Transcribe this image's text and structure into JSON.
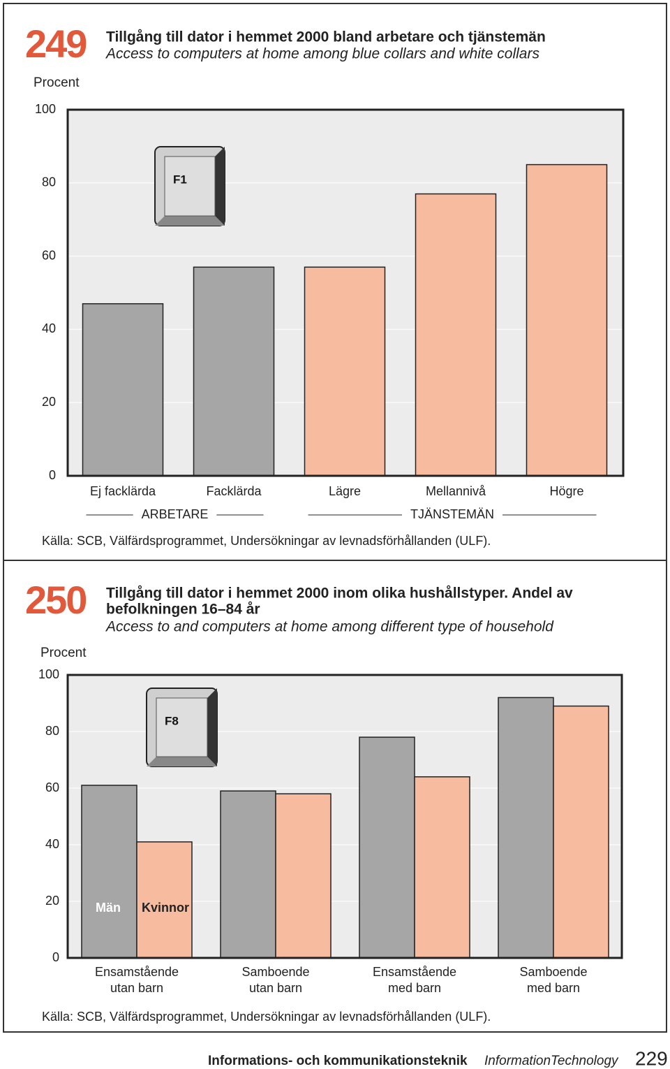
{
  "chart_data": [
    {
      "type": "bar",
      "number": "249",
      "title": "Tillgång till dator i hemmet 2000 bland arbetare och tjänstemän",
      "subtitle": "Access to computers at home among blue collars and white collars",
      "y_label": "Procent",
      "icon_label": "F1",
      "series": [
        {
          "name": "ARBETARE",
          "color": "#a6a6a6",
          "categories": [
            "Ej facklärda",
            "Facklärda"
          ],
          "values": [
            47,
            57
          ]
        },
        {
          "name": "TJÄNSTEMÄN",
          "color": "#f7bba0",
          "categories": [
            "Lägre",
            "Mellannivå",
            "Högre"
          ],
          "values": [
            57,
            77,
            85
          ]
        }
      ],
      "ylim": [
        0,
        100
      ],
      "yticks": [
        0,
        20,
        40,
        60,
        80,
        100
      ],
      "grid": true,
      "source": "Källa: SCB, Välfärdsprogrammet, Undersökningar av levnadsförhållanden (ULF)."
    },
    {
      "type": "grouped_bar",
      "number": "250",
      "title": [
        "Tillgång till dator i hemmet 2000 inom olika hushållstyper. Andel av",
        "befolkningen 16–84 år"
      ],
      "subtitle": "Access to and computers at home among different type of household",
      "y_label": "Procent",
      "icon_label": "F8",
      "categories": [
        [
          "Ensamstående",
          "utan barn"
        ],
        [
          "Samboende",
          "utan barn"
        ],
        [
          "Ensamstående",
          "med barn"
        ],
        [
          "Samboende",
          "med barn"
        ]
      ],
      "series": [
        {
          "name": "Män",
          "color": "#a6a6a6",
          "values": [
            61,
            59,
            78,
            92
          ]
        },
        {
          "name": "Kvinnor",
          "color": "#f7bba0",
          "values": [
            41,
            58,
            64,
            89
          ]
        }
      ],
      "ylim": [
        0,
        100
      ],
      "yticks": [
        0,
        20,
        40,
        60,
        80,
        100
      ],
      "grid": true,
      "source": "Källa: SCB, Välfärdsprogrammet, Undersökningar av levnadsförhållanden (ULF)."
    }
  ],
  "footer": {
    "section": "Informations- och kommunikationsteknik",
    "section_en": "InformationTechnology",
    "page": 229
  }
}
